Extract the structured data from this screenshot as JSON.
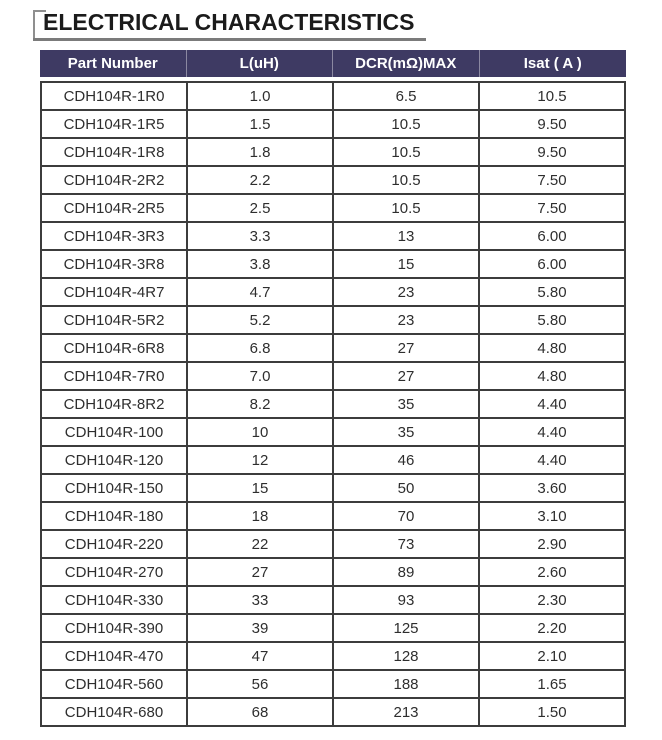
{
  "title": "ELECTRICAL CHARACTERISTICS",
  "colors": {
    "header_bg": "#3e3a63",
    "header_text": "#ffffff",
    "grid_border": "#3c3c3c",
    "title_underline": "#7b7b7b"
  },
  "table": {
    "columns": [
      "Part Number",
      "L(uH)",
      "DCR(mΩ)MAX",
      "Isat ( A )"
    ],
    "rows": [
      [
        "CDH104R-1R0",
        "1.0",
        "6.5",
        "10.5"
      ],
      [
        "CDH104R-1R5",
        "1.5",
        "10.5",
        "9.50"
      ],
      [
        "CDH104R-1R8",
        "1.8",
        "10.5",
        "9.50"
      ],
      [
        "CDH104R-2R2",
        "2.2",
        "10.5",
        "7.50"
      ],
      [
        "CDH104R-2R5",
        "2.5",
        "10.5",
        "7.50"
      ],
      [
        "CDH104R-3R3",
        "3.3",
        "13",
        "6.00"
      ],
      [
        "CDH104R-3R8",
        "3.8",
        "15",
        "6.00"
      ],
      [
        "CDH104R-4R7",
        "4.7",
        "23",
        "5.80"
      ],
      [
        "CDH104R-5R2",
        "5.2",
        "23",
        "5.80"
      ],
      [
        "CDH104R-6R8",
        "6.8",
        "27",
        "4.80"
      ],
      [
        "CDH104R-7R0",
        "7.0",
        "27",
        "4.80"
      ],
      [
        "CDH104R-8R2",
        "8.2",
        "35",
        "4.40"
      ],
      [
        "CDH104R-100",
        "10",
        "35",
        "4.40"
      ],
      [
        "CDH104R-120",
        "12",
        "46",
        "4.40"
      ],
      [
        "CDH104R-150",
        "15",
        "50",
        "3.60"
      ],
      [
        "CDH104R-180",
        "18",
        "70",
        "3.10"
      ],
      [
        "CDH104R-220",
        "22",
        "73",
        "2.90"
      ],
      [
        "CDH104R-270",
        "27",
        "89",
        "2.60"
      ],
      [
        "CDH104R-330",
        "33",
        "93",
        "2.30"
      ],
      [
        "CDH104R-390",
        "39",
        "125",
        "2.20"
      ],
      [
        "CDH104R-470",
        "47",
        "128",
        "2.10"
      ],
      [
        "CDH104R-560",
        "56",
        "188",
        "1.65"
      ],
      [
        "CDH104R-680",
        "68",
        "213",
        "1.50"
      ]
    ]
  }
}
